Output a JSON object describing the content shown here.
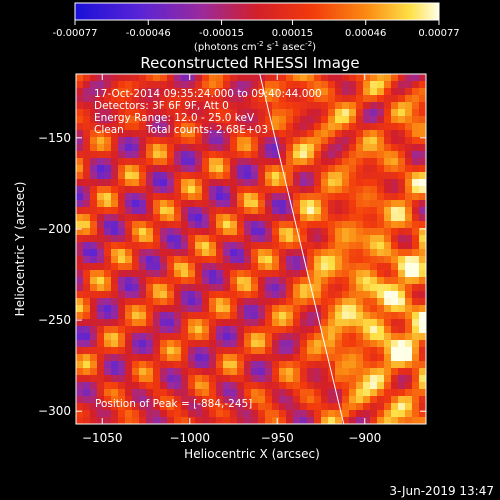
{
  "chart_data": {
    "type": "heatmap",
    "title": "Reconstructed RHESSI Image",
    "xlabel": "Heliocentric X (arcsec)",
    "ylabel": "Heliocentric Y (arcsec)",
    "xlim": [
      -1065,
      -865
    ],
    "ylim": [
      -307,
      -115
    ],
    "x_ticks": [
      -1050,
      -1000,
      -950,
      -900
    ],
    "y_ticks": [
      -150,
      -200,
      -250,
      -300
    ],
    "colorbar": {
      "range": [
        -0.00077,
        0.00077
      ],
      "tick_values": [
        -0.00077,
        -0.00046,
        -0.00015,
        0.00015,
        0.00046,
        0.00077
      ],
      "tick_labels": [
        "-0.00077",
        "-0.00046",
        "-0.00015",
        "0.00015",
        "0.00046",
        "0.00077"
      ],
      "units_text": "(photons cm",
      "units_sup1": "-2",
      "units_mid1": " s",
      "units_sup2": "-1",
      "units_mid2": " asec",
      "units_sup3": "-2",
      "units_end": ")"
    },
    "annotations": {
      "time_range": "17-Oct-2014 09:35:24.000 to 09:40:44.000",
      "detectors": "Detectors: 3F 6F 9F, Att 0",
      "energy": "Energy Range: 12.0 - 25.0 keV",
      "method": "Clean",
      "total_counts": "Total counts: 2.68E+03",
      "peak": "Position of Peak = [-884,-245]"
    },
    "peak_position": [
      -884,
      -245
    ],
    "limb_line": {
      "x_start": -960,
      "y_start": -115,
      "x_end": -912,
      "y_end": -307
    },
    "grid": false
  },
  "footer": {
    "date": "3-Jun-2019 13:47"
  }
}
